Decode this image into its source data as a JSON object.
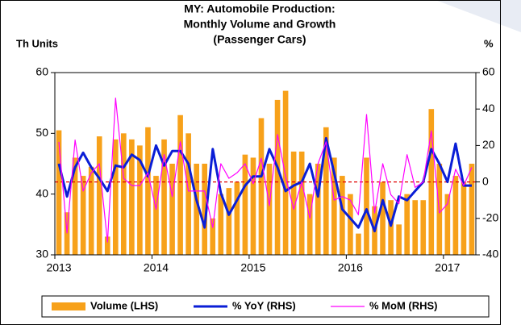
{
  "chart_data": {
    "type": "bar_line",
    "title": [
      "MY: Automobile Production:",
      "Monthly Volume and Growth",
      "(Passenger Cars)"
    ],
    "y_label": "Th Units",
    "y2_label": "%",
    "categories": [
      "2013",
      null,
      null,
      null,
      null,
      null,
      null,
      null,
      null,
      null,
      null,
      null,
      "2014",
      null,
      null,
      null,
      null,
      null,
      null,
      null,
      null,
      null,
      null,
      null,
      "2015",
      null,
      null,
      null,
      null,
      null,
      null,
      null,
      null,
      null,
      null,
      null,
      "2016",
      null,
      null,
      null,
      null,
      null,
      null,
      null,
      null,
      null,
      null,
      null,
      "2017",
      null,
      null,
      null
    ],
    "series": [
      {
        "name": "Volume (LHS)",
        "color": "#f7a11a",
        "kind": "bar",
        "axis": "y",
        "values": [
          50.5,
          37,
          46,
          43,
          44.5,
          49.5,
          33,
          49,
          50,
          49,
          48,
          51,
          43,
          49,
          45,
          53,
          50,
          45,
          45,
          36,
          40,
          41,
          42,
          46.5,
          46,
          52.5,
          45,
          55.5,
          57,
          47,
          47,
          40,
          45,
          51,
          46,
          43,
          40,
          33.5,
          46,
          38,
          42,
          39,
          35,
          40,
          39,
          39,
          54,
          45,
          40,
          43,
          42,
          45
        ]
      },
      {
        "name": "% YoY (RHS)",
        "color": "#0a1ed6",
        "kind": "line",
        "width": 3,
        "axis": "y2",
        "values": [
          10,
          -8,
          8,
          16,
          8,
          2,
          -5,
          9,
          8,
          15,
          12,
          3,
          20,
          9,
          17,
          17,
          10,
          -10,
          -25,
          18,
          -6,
          -18,
          -10,
          -2,
          3,
          3,
          18,
          8,
          -5,
          -2,
          0,
          10,
          -8,
          24,
          5,
          -15,
          -20,
          -25,
          -15,
          -27,
          -10,
          -24,
          -8,
          -10,
          -5,
          0,
          18,
          10,
          0,
          21,
          -2,
          -2
        ]
      },
      {
        "name": "% MoM (RHS)",
        "color": "#ff00ff",
        "kind": "line",
        "width": 1.2,
        "axis": "y2",
        "values": [
          22,
          -28,
          23,
          -5,
          5,
          10,
          -33,
          46,
          2,
          -2,
          -2,
          5,
          -15,
          15,
          -8,
          22,
          -5,
          -5,
          -5,
          -25,
          10,
          2,
          5,
          10,
          -1,
          13,
          -13,
          26,
          3,
          -15,
          0,
          -20,
          10,
          22,
          -10,
          -8,
          -10,
          -18,
          37,
          -17,
          10,
          -7,
          -12,
          15,
          -3,
          0,
          28,
          -17,
          -12,
          7,
          -2,
          8
        ]
      }
    ],
    "ylim": [
      30,
      60
    ],
    "yticks": [
      30,
      40,
      50,
      60
    ],
    "y2lim": [
      -40,
      60
    ],
    "y2ticks": [
      -40,
      -20,
      0,
      20,
      40,
      60
    ],
    "reference_line": {
      "axis": "y2",
      "value": 0,
      "color": "#e00000"
    },
    "legend": "bottom"
  }
}
